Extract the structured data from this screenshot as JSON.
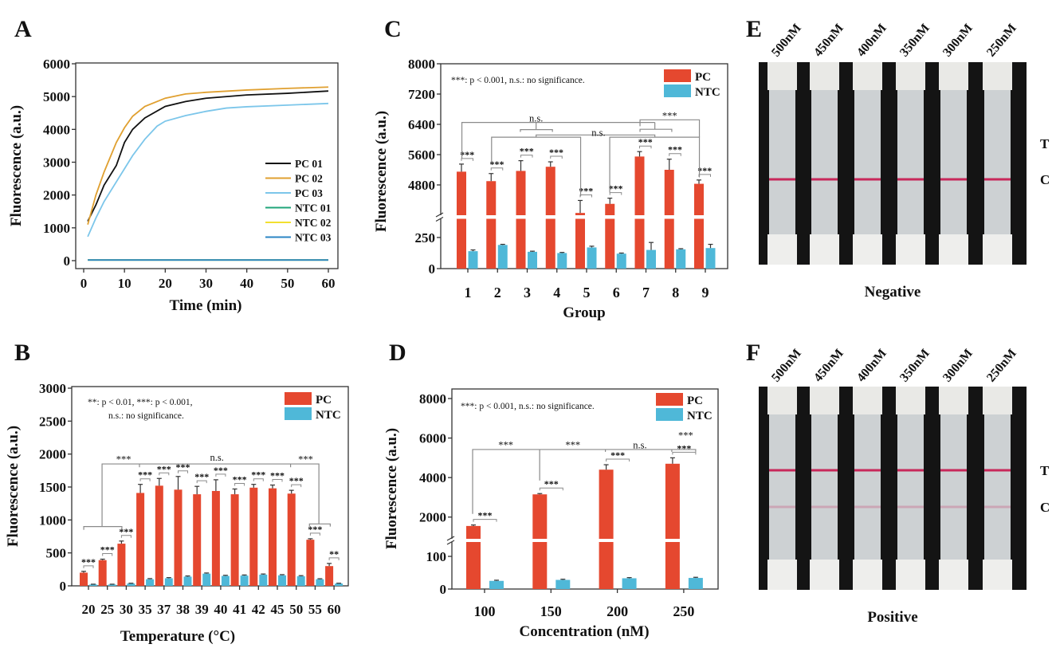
{
  "colors": {
    "pc": "#e5482f",
    "ntc": "#4fb8d8",
    "axis": "#333333",
    "bracket": "#8a8a8a",
    "strip_line": "#c8285a"
  },
  "chart_data": [
    {
      "panel": "A",
      "type": "line",
      "xlabel": "Time (min)",
      "ylabel": "Fluorescence (a.u.)",
      "xlim": [
        0,
        60
      ],
      "ylim": [
        0,
        6000
      ],
      "xticks": [
        0,
        10,
        20,
        30,
        40,
        50,
        60
      ],
      "yticks": [
        0,
        1000,
        2000,
        3000,
        4000,
        5000,
        6000
      ],
      "legend": "right-middle",
      "series": [
        {
          "name": "PC 01",
          "color": "#111111",
          "x": [
            1,
            3,
            5,
            8,
            10,
            12,
            15,
            20,
            25,
            30,
            40,
            50,
            60
          ],
          "y": [
            1200,
            1700,
            2300,
            2900,
            3600,
            4000,
            4350,
            4700,
            4850,
            4950,
            5050,
            5100,
            5170
          ]
        },
        {
          "name": "PC 02",
          "color": "#e0a030",
          "x": [
            1,
            3,
            5,
            8,
            10,
            12,
            15,
            20,
            25,
            30,
            40,
            50,
            60
          ],
          "y": [
            1100,
            2000,
            2700,
            3600,
            4050,
            4400,
            4700,
            4950,
            5080,
            5130,
            5200,
            5250,
            5290
          ]
        },
        {
          "name": "PC 03",
          "color": "#7cc6ea",
          "x": [
            1,
            3,
            5,
            8,
            10,
            12,
            15,
            18,
            20,
            25,
            30,
            35,
            40,
            50,
            60
          ],
          "y": [
            730,
            1300,
            1800,
            2400,
            2800,
            3200,
            3700,
            4100,
            4250,
            4420,
            4550,
            4650,
            4690,
            4740,
            4790
          ]
        },
        {
          "name": "NTC 01",
          "color": "#1fa57a",
          "x": [
            1,
            60
          ],
          "y": [
            20,
            20
          ]
        },
        {
          "name": "NTC 02",
          "color": "#f2e030",
          "x": [
            1,
            60
          ],
          "y": [
            20,
            20
          ]
        },
        {
          "name": "NTC 03",
          "color": "#2b86c4",
          "x": [
            1,
            60
          ],
          "y": [
            20,
            20
          ]
        }
      ]
    },
    {
      "panel": "B",
      "type": "bar",
      "xlabel": "Temperature (°C)",
      "ylabel": "Fluorescence (a.u.)",
      "ylim": [
        0,
        3000
      ],
      "yticks": [
        0,
        500,
        1000,
        1500,
        2000,
        2500,
        3000
      ],
      "categories": [
        "20",
        "25",
        "30",
        "35",
        "37",
        "38",
        "39",
        "40",
        "41",
        "42",
        "45",
        "50",
        "55",
        "60"
      ],
      "series": [
        {
          "name": "PC",
          "values": [
            200,
            390,
            640,
            1410,
            1520,
            1460,
            1390,
            1440,
            1390,
            1490,
            1480,
            1400,
            700,
            300
          ],
          "errors": [
            20,
            15,
            40,
            130,
            110,
            200,
            120,
            170,
            80,
            50,
            50,
            50,
            15,
            40
          ]
        },
        {
          "name": "NTC",
          "values": [
            20,
            20,
            35,
            100,
            115,
            140,
            185,
            150,
            155,
            170,
            160,
            145,
            100,
            35
          ],
          "errors": [
            5,
            5,
            5,
            10,
            10,
            10,
            10,
            10,
            10,
            10,
            10,
            10,
            8,
            5
          ]
        }
      ],
      "legend": "top-right",
      "note": [
        "**: p < 0.01, ***: p < 0.001,",
        "n.s.: no significance."
      ],
      "pair_sig": [
        "***",
        "***",
        "***",
        "***",
        "***",
        "***",
        "***",
        "***",
        "***",
        "***",
        "***",
        "***",
        "***",
        "**"
      ],
      "brackets": [
        {
          "label": "",
          "label_at": [
            0,
            0
          ],
          "path": [
            [
              -0.25,
              850
            ],
            [
              -0.25,
              900
            ],
            [
              1.77,
              900
            ],
            [
              1.77,
              850
            ]
          ]
        },
        {
          "label": "***",
          "label_at": [
            1.86,
            1920
          ],
          "path": [
            [
              0.72,
              900
            ],
            [
              0.72,
              1850
            ],
            [
              12.2,
              1850
            ],
            [
              12.2,
              940
            ]
          ]
        },
        {
          "label": "n.s.",
          "label_at": [
            6.8,
            1920
          ],
          "path": [
            [
              2.7,
              1800
            ],
            [
              2.7,
              1850
            ]
          ]
        },
        {
          "label": "***",
          "label_at": [
            11.5,
            1920
          ],
          "path": [
            [
              10.7,
              1800
            ],
            [
              10.7,
              1850
            ]
          ]
        },
        {
          "label": "",
          "label_at": [
            0,
            0
          ],
          "path": [
            [
              11.7,
              900
            ],
            [
              11.7,
              940
            ],
            [
              12.8,
              940
            ],
            [
              12.8,
              900
            ]
          ]
        }
      ]
    },
    {
      "panel": "C",
      "type": "bar",
      "xlabel": "Group",
      "ylabel": "Fluorescence (a.u.)",
      "y_segments": [
        {
          "range": [
            0,
            400
          ],
          "ticks": [
            0,
            250
          ]
        },
        {
          "range": [
            4000,
            8000
          ],
          "ticks": [
            4800,
            5600,
            6400,
            7200,
            8000
          ]
        }
      ],
      "categories": [
        "1",
        "2",
        "3",
        "4",
        "5",
        "6",
        "7",
        "8",
        "9"
      ],
      "series": [
        {
          "name": "PC",
          "values": [
            5150,
            4900,
            5170,
            5280,
            4060,
            4300,
            5550,
            5200,
            4830
          ],
          "errors": [
            200,
            200,
            270,
            130,
            330,
            150,
            130,
            280,
            100
          ]
        },
        {
          "name": "NTC",
          "values": [
            140,
            190,
            135,
            125,
            170,
            120,
            150,
            155,
            165
          ],
          "errors": [
            10,
            5,
            5,
            5,
            10,
            5,
            60,
            5,
            30
          ]
        }
      ],
      "legend": "top-right",
      "note": [
        "***: p < 0.001, n.s.: no significance."
      ],
      "pair_sig": [
        "***",
        "***",
        "***",
        "***",
        "***",
        "***",
        "***",
        "***",
        "***"
      ],
      "brackets": [
        {
          "label": "n.s.",
          "label_at": [
            2.3,
            6560
          ],
          "path": [
            [
              -0.2,
              5500
            ],
            [
              -0.2,
              6450
            ],
            [
              6.3,
              6450
            ]
          ]
        },
        {
          "label": "",
          "label_at": [
            0,
            0
          ],
          "path": [
            [
              1.77,
              6200
            ],
            [
              1.77,
              6260
            ],
            [
              2.85,
              6260
            ],
            [
              2.85,
              6200
            ]
          ]
        },
        {
          "label": "",
          "label_at": [
            0,
            0
          ],
          "path": [
            [
              2.3,
              6260
            ],
            [
              2.3,
              6450
            ]
          ]
        },
        {
          "label": "",
          "label_at": [
            0,
            0
          ],
          "path": [
            [
              5.8,
              6200
            ],
            [
              5.8,
              6270
            ],
            [
              6.87,
              6270
            ],
            [
              6.87,
              6200
            ]
          ]
        },
        {
          "label": "",
          "label_at": [
            0,
            0
          ],
          "path": [
            [
              6.3,
              6270
            ],
            [
              6.3,
              6450
            ]
          ]
        },
        {
          "label": "",
          "label_at": [
            0,
            0
          ],
          "path": [
            [
              0.8,
              5400
            ],
            [
              0.8,
              6060
            ],
            [
              3.8,
              6060
            ],
            [
              3.8,
              4500
            ]
          ]
        },
        {
          "label": "",
          "label_at": [
            0,
            0
          ],
          "path": [
            [
              4.78,
              4600
            ],
            [
              4.78,
              6060
            ],
            [
              7.8,
              6060
            ],
            [
              7.8,
              5000
            ]
          ]
        },
        {
          "label": "n.s.",
          "label_at": [
            4.4,
            6180
          ],
          "path": [
            [
              2.3,
              6060
            ],
            [
              2.3,
              6120
            ],
            [
              6.3,
              6120
            ],
            [
              6.3,
              6060
            ]
          ]
        },
        {
          "label": "***",
          "label_at": [
            6.8,
            6620
          ],
          "path": [
            [
              5.8,
              6350
            ],
            [
              5.8,
              6520
            ],
            [
              7.8,
              6520
            ],
            [
              7.8,
              6060
            ]
          ]
        }
      ]
    },
    {
      "panel": "D",
      "type": "bar",
      "xlabel": "Concentration (nM)",
      "ylabel": "Fluorescence (a.u.)",
      "y_segments": [
        {
          "range": [
            0,
            144
          ],
          "ticks": [
            0,
            100
          ]
        },
        {
          "range": [
            900,
            8000
          ],
          "ticks": [
            2000,
            4000,
            6000,
            8000
          ]
        }
      ],
      "categories": [
        "100",
        "150",
        "200",
        "250"
      ],
      "series": [
        {
          "name": "PC",
          "values": [
            1550,
            3150,
            4400,
            4700
          ],
          "errors": [
            50,
            40,
            250,
            300
          ]
        },
        {
          "name": "NTC",
          "values": [
            25,
            28,
            33,
            34
          ],
          "errors": [
            2,
            2,
            2,
            2
          ]
        }
      ],
      "legend": "top-right",
      "note": [
        "***: p < 0.001, n.s.: no significance."
      ],
      "pair_sig": [
        "***",
        "***",
        "***",
        "***"
      ],
      "brackets": [
        {
          "label": "***",
          "label_at": [
            0.32,
            5650
          ],
          "path": [
            [
              -0.18,
              2160
            ],
            [
              -0.18,
              5420
            ],
            [
              3.18,
              5420
            ],
            [
              3.18,
              5300
            ]
          ]
        },
        {
          "label": "",
          "label_at": [
            0,
            0
          ],
          "path": [
            [
              0.83,
              5420
            ],
            [
              0.83,
              3850
            ]
          ]
        },
        {
          "label": "***",
          "label_at": [
            1.33,
            5650
          ],
          "path": [
            [
              1.82,
              5420
            ],
            [
              1.82,
              5300
            ]
          ]
        },
        {
          "label": "n.s.",
          "label_at": [
            2.34,
            5650
          ],
          "path": [
            [
              2.82,
              5420
            ],
            [
              2.82,
              5300
            ]
          ]
        },
        {
          "label": "***",
          "label_at": [
            3.03,
            5650
          ],
          "path": []
        }
      ]
    }
  ],
  "strips": [
    {
      "panel": "E",
      "concentrations": [
        "500nM",
        "450nM",
        "400nM",
        "350nM",
        "300nM",
        "250nM"
      ],
      "line_labels": [
        "T",
        "C"
      ],
      "caption": "Negative",
      "t_line": 0,
      "c_line": 1
    },
    {
      "panel": "F",
      "concentrations": [
        "500nM",
        "450nM",
        "400nM",
        "350nM",
        "300nM",
        "250nM"
      ],
      "line_labels": [
        "T",
        "C"
      ],
      "caption": "Positive",
      "t_line": 1,
      "c_line": 0.25
    }
  ]
}
